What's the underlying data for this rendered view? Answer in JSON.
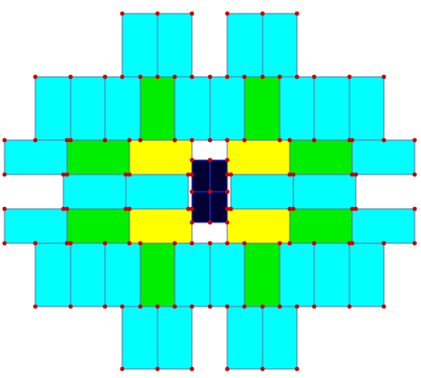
{
  "colors": {
    "background": "#ffffff",
    "cyan": "#00ffff",
    "green": "#00ee00",
    "yellow": "#ffff00",
    "center": "#000033",
    "edge": "#6070a0",
    "node": "#cc0000",
    "center_edge": "#3030ff"
  }
}
